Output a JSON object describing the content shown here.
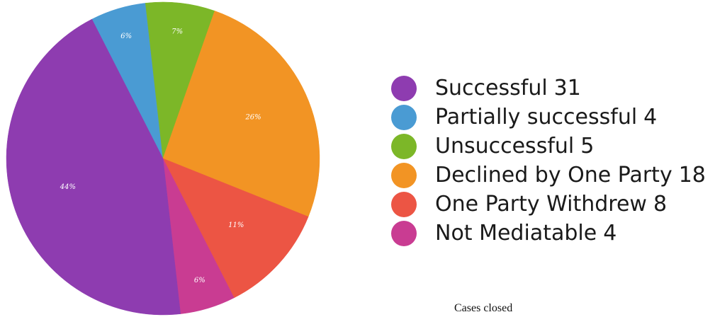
{
  "caption": "Cases closed",
  "chart_data": {
    "type": "pie",
    "title": "",
    "start_angle_deg": -27,
    "slices": [
      {
        "name": "Partially successful",
        "count": "4",
        "percent_label": "6%",
        "value": 4,
        "color": "#4A9BD3"
      },
      {
        "name": "Unsuccessful",
        "count": "5",
        "percent_label": "7%",
        "value": 5,
        "color": "#7CB728"
      },
      {
        "name": "Declined by One Party",
        "count": "18",
        "percent_label": "26%",
        "value": 18,
        "color": "#F29424"
      },
      {
        "name": "One Party Withdrew",
        "count": "8",
        "percent_label": "11%",
        "value": 8,
        "color": "#EC5544"
      },
      {
        "name": "Not Mediatable",
        "count": "4",
        "percent_label": "6%",
        "value": 4,
        "color": "#C93C92"
      },
      {
        "name": "Successful",
        "count": "31",
        "percent_label": "44%",
        "value": 31,
        "color": "#8E3CB0"
      }
    ],
    "legend_order": [
      "Successful",
      "Partially successful",
      "Unsuccessful",
      "Declined by One Party",
      "One Party Withdrew",
      "Not Mediatable"
    ],
    "legend_position": "right"
  }
}
